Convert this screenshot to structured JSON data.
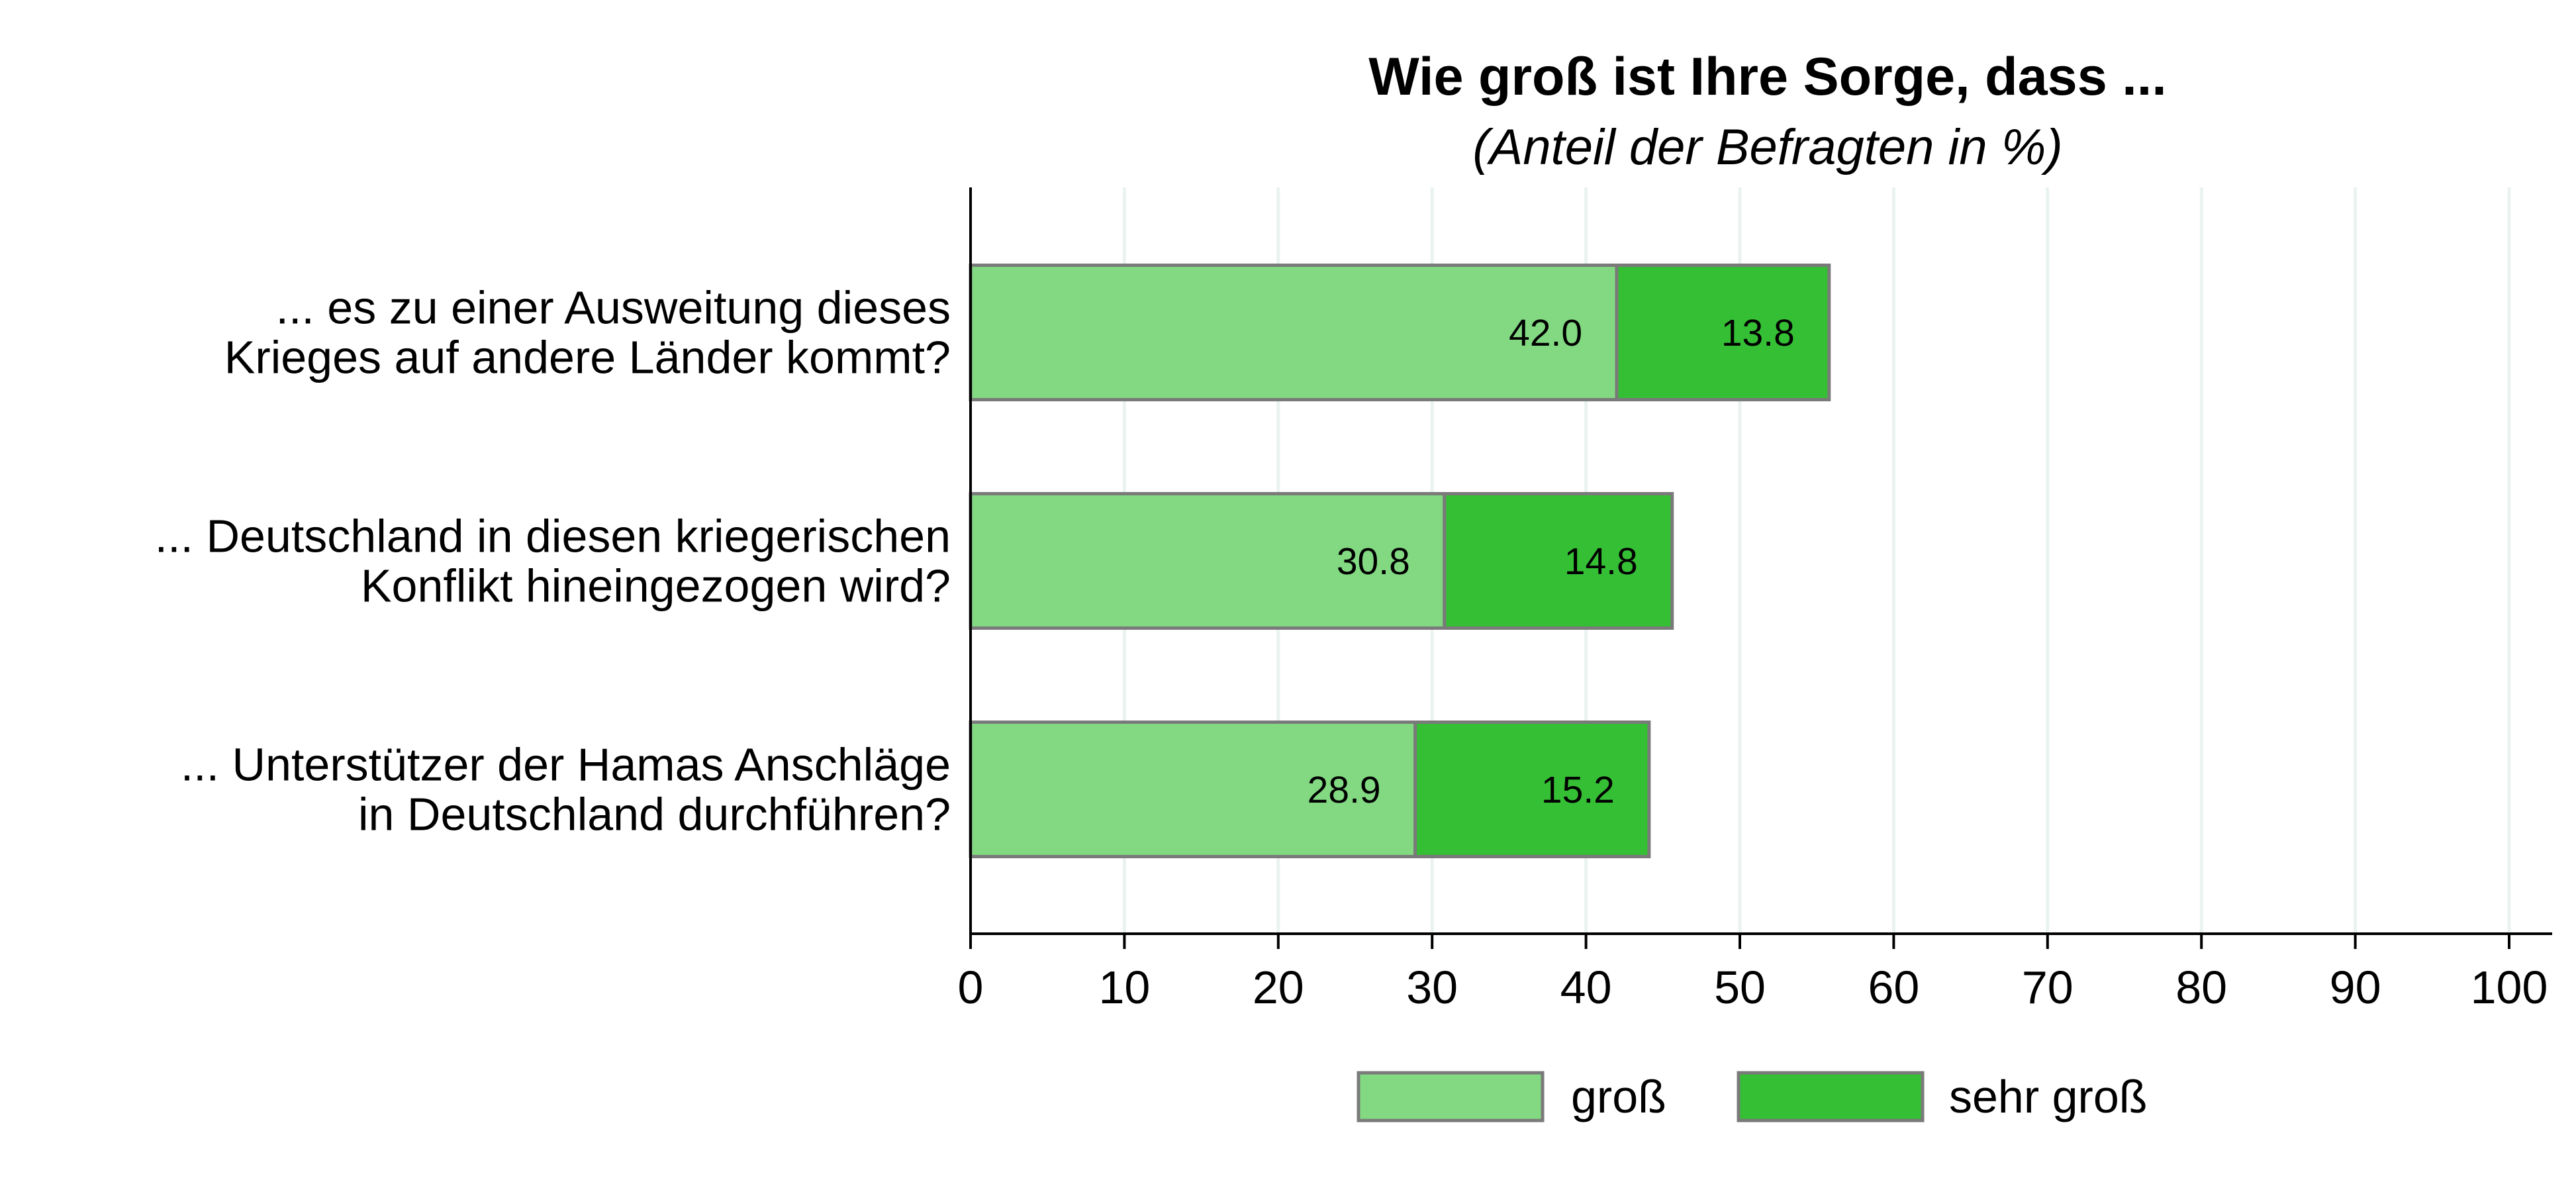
{
  "chart_data": {
    "type": "bar",
    "orientation": "horizontal",
    "stacked": true,
    "title": "Wie groß ist Ihre Sorge, dass ...",
    "subtitle": "(Anteil der Befragten in %)",
    "categories": [
      [
        "... es zu einer Ausweitung dieses",
        "Krieges auf andere Länder kommt?"
      ],
      [
        "... Deutschland in diesen kriegerischen",
        "Konflikt hineingezogen wird?"
      ],
      [
        "... Unterstützer der Hamas Anschläge",
        "in Deutschland durchführen?"
      ]
    ],
    "series": [
      {
        "name": "groß",
        "color": "#82d982",
        "values": [
          42.0,
          30.8,
          28.9
        ],
        "labels": [
          "42.0",
          "30.8",
          "28.9"
        ]
      },
      {
        "name": "sehr groß",
        "color": "#35bf35",
        "values": [
          13.8,
          14.8,
          15.2
        ],
        "labels": [
          "13.8",
          "14.8",
          "15.2"
        ]
      }
    ],
    "xlim": [
      0,
      100
    ],
    "xticks": [
      0,
      10,
      20,
      30,
      40,
      50,
      60,
      70,
      80,
      90,
      100
    ],
    "grid": true,
    "legend_position": "bottom",
    "grid_color": "#eaf3f1",
    "outline_color": "#7a7a7a"
  }
}
